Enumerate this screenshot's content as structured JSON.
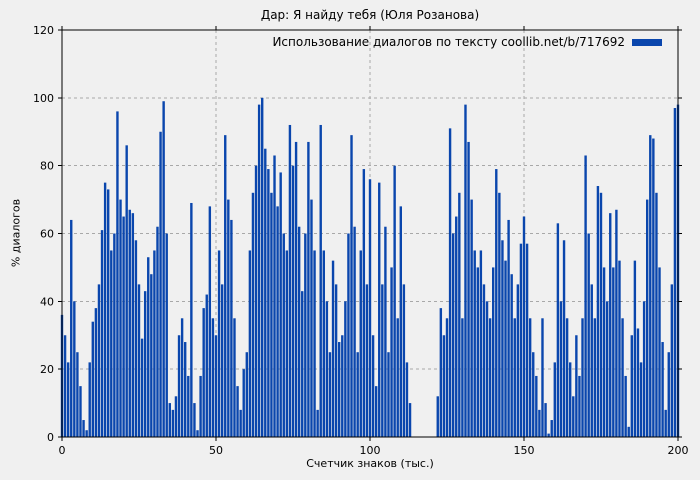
{
  "chart_data": {
    "type": "bar",
    "title": "Дар: Я найду тебя (Юля Розанова)",
    "legend_label": "Использование диалогов по тексту coollib.net/b/717692",
    "xlabel": "Счетчик знаков (тыс.)",
    "ylabel": "% диалогов",
    "xlim": [
      0,
      200
    ],
    "ylim": [
      0,
      120
    ],
    "x_ticks": [
      0,
      50,
      100,
      150,
      200
    ],
    "y_ticks": [
      0,
      20,
      40,
      60,
      80,
      100,
      120
    ],
    "grid": true,
    "legend_position": "top-right-inside",
    "bar_color": "#0a46ad",
    "grid_color": "#a8a8a8",
    "background_color": "#f0f0f0",
    "x_step": 1,
    "values": [
      36,
      30,
      22,
      64,
      40,
      25,
      15,
      5,
      2,
      22,
      34,
      38,
      45,
      61,
      75,
      73,
      55,
      60,
      96,
      70,
      65,
      86,
      67,
      66,
      58,
      45,
      29,
      43,
      53,
      48,
      55,
      62,
      90,
      99,
      60,
      10,
      8,
      12,
      30,
      35,
      28,
      18,
      69,
      10,
      2,
      18,
      38,
      42,
      68,
      35,
      30,
      55,
      45,
      89,
      70,
      64,
      35,
      15,
      8,
      20,
      25,
      55,
      72,
      80,
      98,
      100,
      85,
      79,
      72,
      83,
      68,
      78,
      60,
      55,
      92,
      80,
      87,
      62,
      43,
      60,
      87,
      70,
      55,
      8,
      92,
      55,
      40,
      25,
      52,
      45,
      28,
      30,
      40,
      60,
      89,
      62,
      25,
      55,
      79,
      45,
      76,
      30,
      15,
      75,
      45,
      62,
      25,
      50,
      80,
      35,
      68,
      45,
      22,
      10,
      0,
      0,
      0,
      0,
      0,
      0,
      0,
      0,
      12,
      38,
      30,
      35,
      91,
      60,
      65,
      72,
      35,
      98,
      87,
      70,
      55,
      50,
      55,
      45,
      40,
      35,
      50,
      79,
      72,
      58,
      52,
      64,
      48,
      35,
      45,
      57,
      65,
      57,
      35,
      25,
      18,
      8,
      35,
      10,
      1,
      5,
      22,
      63,
      40,
      58,
      35,
      22,
      12,
      30,
      18,
      35,
      83,
      60,
      45,
      35,
      74,
      72,
      50,
      40,
      66,
      50,
      67,
      52,
      35,
      18,
      3,
      30,
      52,
      32,
      22,
      40,
      70,
      89,
      88,
      72,
      50,
      28,
      8,
      25,
      45,
      97,
      98
    ]
  }
}
